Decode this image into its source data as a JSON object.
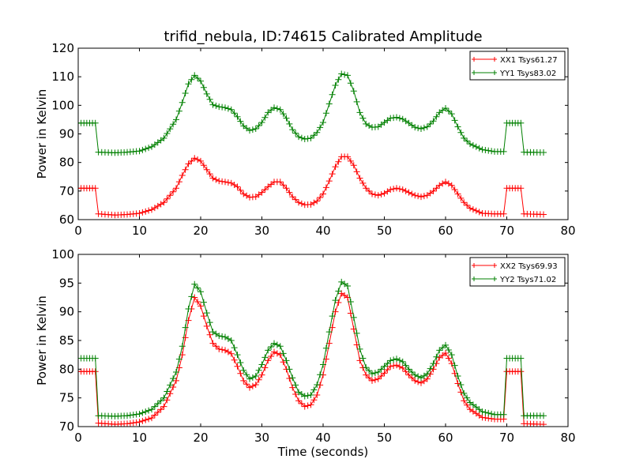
{
  "chart_data": [
    {
      "type": "line",
      "title": "trifid_nebula, ID:74615 Calibrated Amplitude",
      "xlabel": "",
      "ylabel": "Power in Kelvin",
      "xlim": [
        0,
        80
      ],
      "ylim": [
        60,
        120
      ],
      "xticks": [
        0,
        10,
        20,
        30,
        40,
        50,
        60,
        70,
        80
      ],
      "yticks": [
        60,
        70,
        80,
        90,
        100,
        110,
        120
      ],
      "grid": false,
      "legend_position": "top-right",
      "series": [
        {
          "name": "XX1 Tsys61.27",
          "color": "#ff0000",
          "marker": "+",
          "x": [
            0,
            2.8,
            3.3,
            6,
            8,
            10,
            12,
            14,
            16,
            17,
            18,
            19,
            20,
            21,
            22,
            23,
            24,
            25,
            26,
            27,
            28,
            29,
            30,
            31,
            32,
            33,
            34,
            35,
            36,
            37,
            38,
            39,
            40,
            41,
            42,
            43,
            44,
            45,
            46,
            47,
            48,
            49,
            50,
            51,
            52,
            53,
            54,
            55,
            56,
            57,
            58,
            59,
            60,
            61,
            62,
            63,
            64,
            66,
            68,
            69.5,
            70,
            72.3,
            72.8,
            76
          ],
          "y": [
            71,
            71,
            62,
            61.6,
            61.8,
            62.2,
            63.5,
            66,
            71,
            75.5,
            79.5,
            81.5,
            80.5,
            77.5,
            74.5,
            73.5,
            73.2,
            72.8,
            71.5,
            69,
            67.8,
            68,
            69.5,
            71.5,
            73.2,
            73.2,
            71,
            68,
            66,
            65.2,
            65.3,
            66.5,
            69,
            73.5,
            78.5,
            82,
            82,
            79,
            74.5,
            71,
            69,
            68.5,
            69.2,
            70.5,
            71,
            70.5,
            69.5,
            68.5,
            68,
            68.5,
            70,
            72,
            73.2,
            72,
            69,
            66,
            64,
            62.2,
            62,
            62,
            71,
            71,
            62,
            61.8
          ]
        },
        {
          "name": "YY1 Tsys83.02",
          "color": "#008000",
          "marker": "+",
          "x": [
            0,
            2.8,
            3.3,
            6,
            8,
            10,
            12,
            14,
            16,
            17,
            18,
            19,
            20,
            21,
            22,
            23,
            24,
            25,
            26,
            27,
            28,
            29,
            30,
            31,
            32,
            33,
            34,
            35,
            36,
            37,
            38,
            39,
            40,
            41,
            42,
            43,
            44,
            45,
            46,
            47,
            48,
            49,
            50,
            51,
            52,
            53,
            54,
            55,
            56,
            57,
            58,
            59,
            60,
            61,
            62,
            63,
            64,
            66,
            68,
            69.5,
            70,
            72.3,
            72.8,
            76
          ],
          "y": [
            93.8,
            93.8,
            83.6,
            83.4,
            83.6,
            84,
            85.5,
            88.5,
            95,
            101,
            107.5,
            110.5,
            108.5,
            104,
            100.2,
            99.5,
            99.2,
            98.5,
            96,
            92.8,
            91.2,
            91.8,
            94,
            97.5,
            99.2,
            98.5,
            95.5,
            91.5,
            89,
            88.2,
            88.5,
            90.5,
            94,
            100.5,
            107,
            111,
            110.5,
            105,
            97.5,
            93.5,
            92.3,
            92.5,
            94,
            95.5,
            95.8,
            95.2,
            93.8,
            92.3,
            91.8,
            92.5,
            94.5,
            97.5,
            99,
            97,
            92.5,
            88.5,
            86.5,
            84.5,
            83.8,
            83.8,
            93.8,
            93.8,
            83.6,
            83.5
          ]
        }
      ]
    },
    {
      "type": "line",
      "title": "",
      "xlabel": "Time (seconds)",
      "ylabel": "Power in Kelvin",
      "xlim": [
        0,
        80
      ],
      "ylim": [
        70,
        100
      ],
      "xticks": [
        0,
        10,
        20,
        30,
        40,
        50,
        60,
        70,
        80
      ],
      "yticks": [
        70,
        75,
        80,
        85,
        90,
        95,
        100
      ],
      "grid": false,
      "legend_position": "top-right",
      "series": [
        {
          "name": "XX2 Tsys69.93",
          "color": "#ff0000",
          "marker": "+",
          "x": [
            0,
            2.8,
            3.3,
            6,
            8,
            10,
            12,
            14,
            16,
            17,
            18,
            19,
            20,
            21,
            22,
            23,
            24,
            25,
            26,
            27,
            28,
            29,
            30,
            31,
            32,
            33,
            34,
            35,
            36,
            37,
            38,
            39,
            40,
            41,
            42,
            43,
            44,
            45,
            46,
            47,
            48,
            49,
            50,
            51,
            52,
            53,
            54,
            55,
            56,
            57,
            58,
            59,
            60,
            61,
            62,
            63,
            64,
            66,
            68,
            69.5,
            70,
            72.3,
            72.8,
            76
          ],
          "y": [
            79.6,
            79.6,
            70.6,
            70.4,
            70.5,
            70.8,
            71.5,
            73.5,
            78,
            82.5,
            88.5,
            92.5,
            91,
            87.5,
            84.5,
            83.5,
            83.3,
            82.7,
            80.5,
            78,
            76.8,
            77.3,
            79,
            81.5,
            83,
            82.5,
            80,
            76.8,
            74.5,
            73.5,
            73.8,
            75.5,
            79,
            84.5,
            90,
            93.2,
            92.5,
            87,
            81.5,
            79,
            78,
            78.3,
            79.3,
            80.5,
            80.7,
            80.2,
            79,
            78,
            77.6,
            78.3,
            80,
            82,
            82.8,
            81,
            77.5,
            74.5,
            73,
            71.6,
            71.3,
            71.3,
            79.6,
            79.6,
            70.5,
            70.4
          ]
        },
        {
          "name": "YY2 Tsys71.02",
          "color": "#008000",
          "marker": "+",
          "x": [
            0,
            2.8,
            3.3,
            6,
            8,
            10,
            12,
            14,
            16,
            17,
            18,
            19,
            20,
            21,
            22,
            23,
            24,
            25,
            26,
            27,
            28,
            29,
            30,
            31,
            32,
            33,
            34,
            35,
            36,
            37,
            38,
            39,
            40,
            41,
            42,
            43,
            44,
            45,
            46,
            47,
            48,
            49,
            50,
            51,
            52,
            53,
            54,
            55,
            56,
            57,
            58,
            59,
            60,
            61,
            62,
            63,
            64,
            66,
            68,
            69.5,
            70,
            72.3,
            72.8,
            76
          ],
          "y": [
            81.9,
            81.9,
            71.9,
            71.8,
            71.9,
            72.2,
            73,
            75,
            79.5,
            84,
            90.5,
            94.8,
            93.5,
            89.8,
            86.5,
            85.8,
            85.6,
            85,
            82.5,
            79.8,
            78.3,
            78.8,
            80.8,
            83.3,
            84.5,
            84,
            81.5,
            78.5,
            76,
            75.3,
            75.5,
            77.3,
            80.8,
            86.5,
            92,
            95.2,
            94.5,
            89,
            83.5,
            80.3,
            79.2,
            79.5,
            80.5,
            81.5,
            81.8,
            81.3,
            80,
            79,
            78.5,
            79.2,
            81,
            83.3,
            84.2,
            82.5,
            78.8,
            75.8,
            74.2,
            72.6,
            72.1,
            72.1,
            81.9,
            81.9,
            71.9,
            71.9
          ]
        }
      ]
    }
  ]
}
